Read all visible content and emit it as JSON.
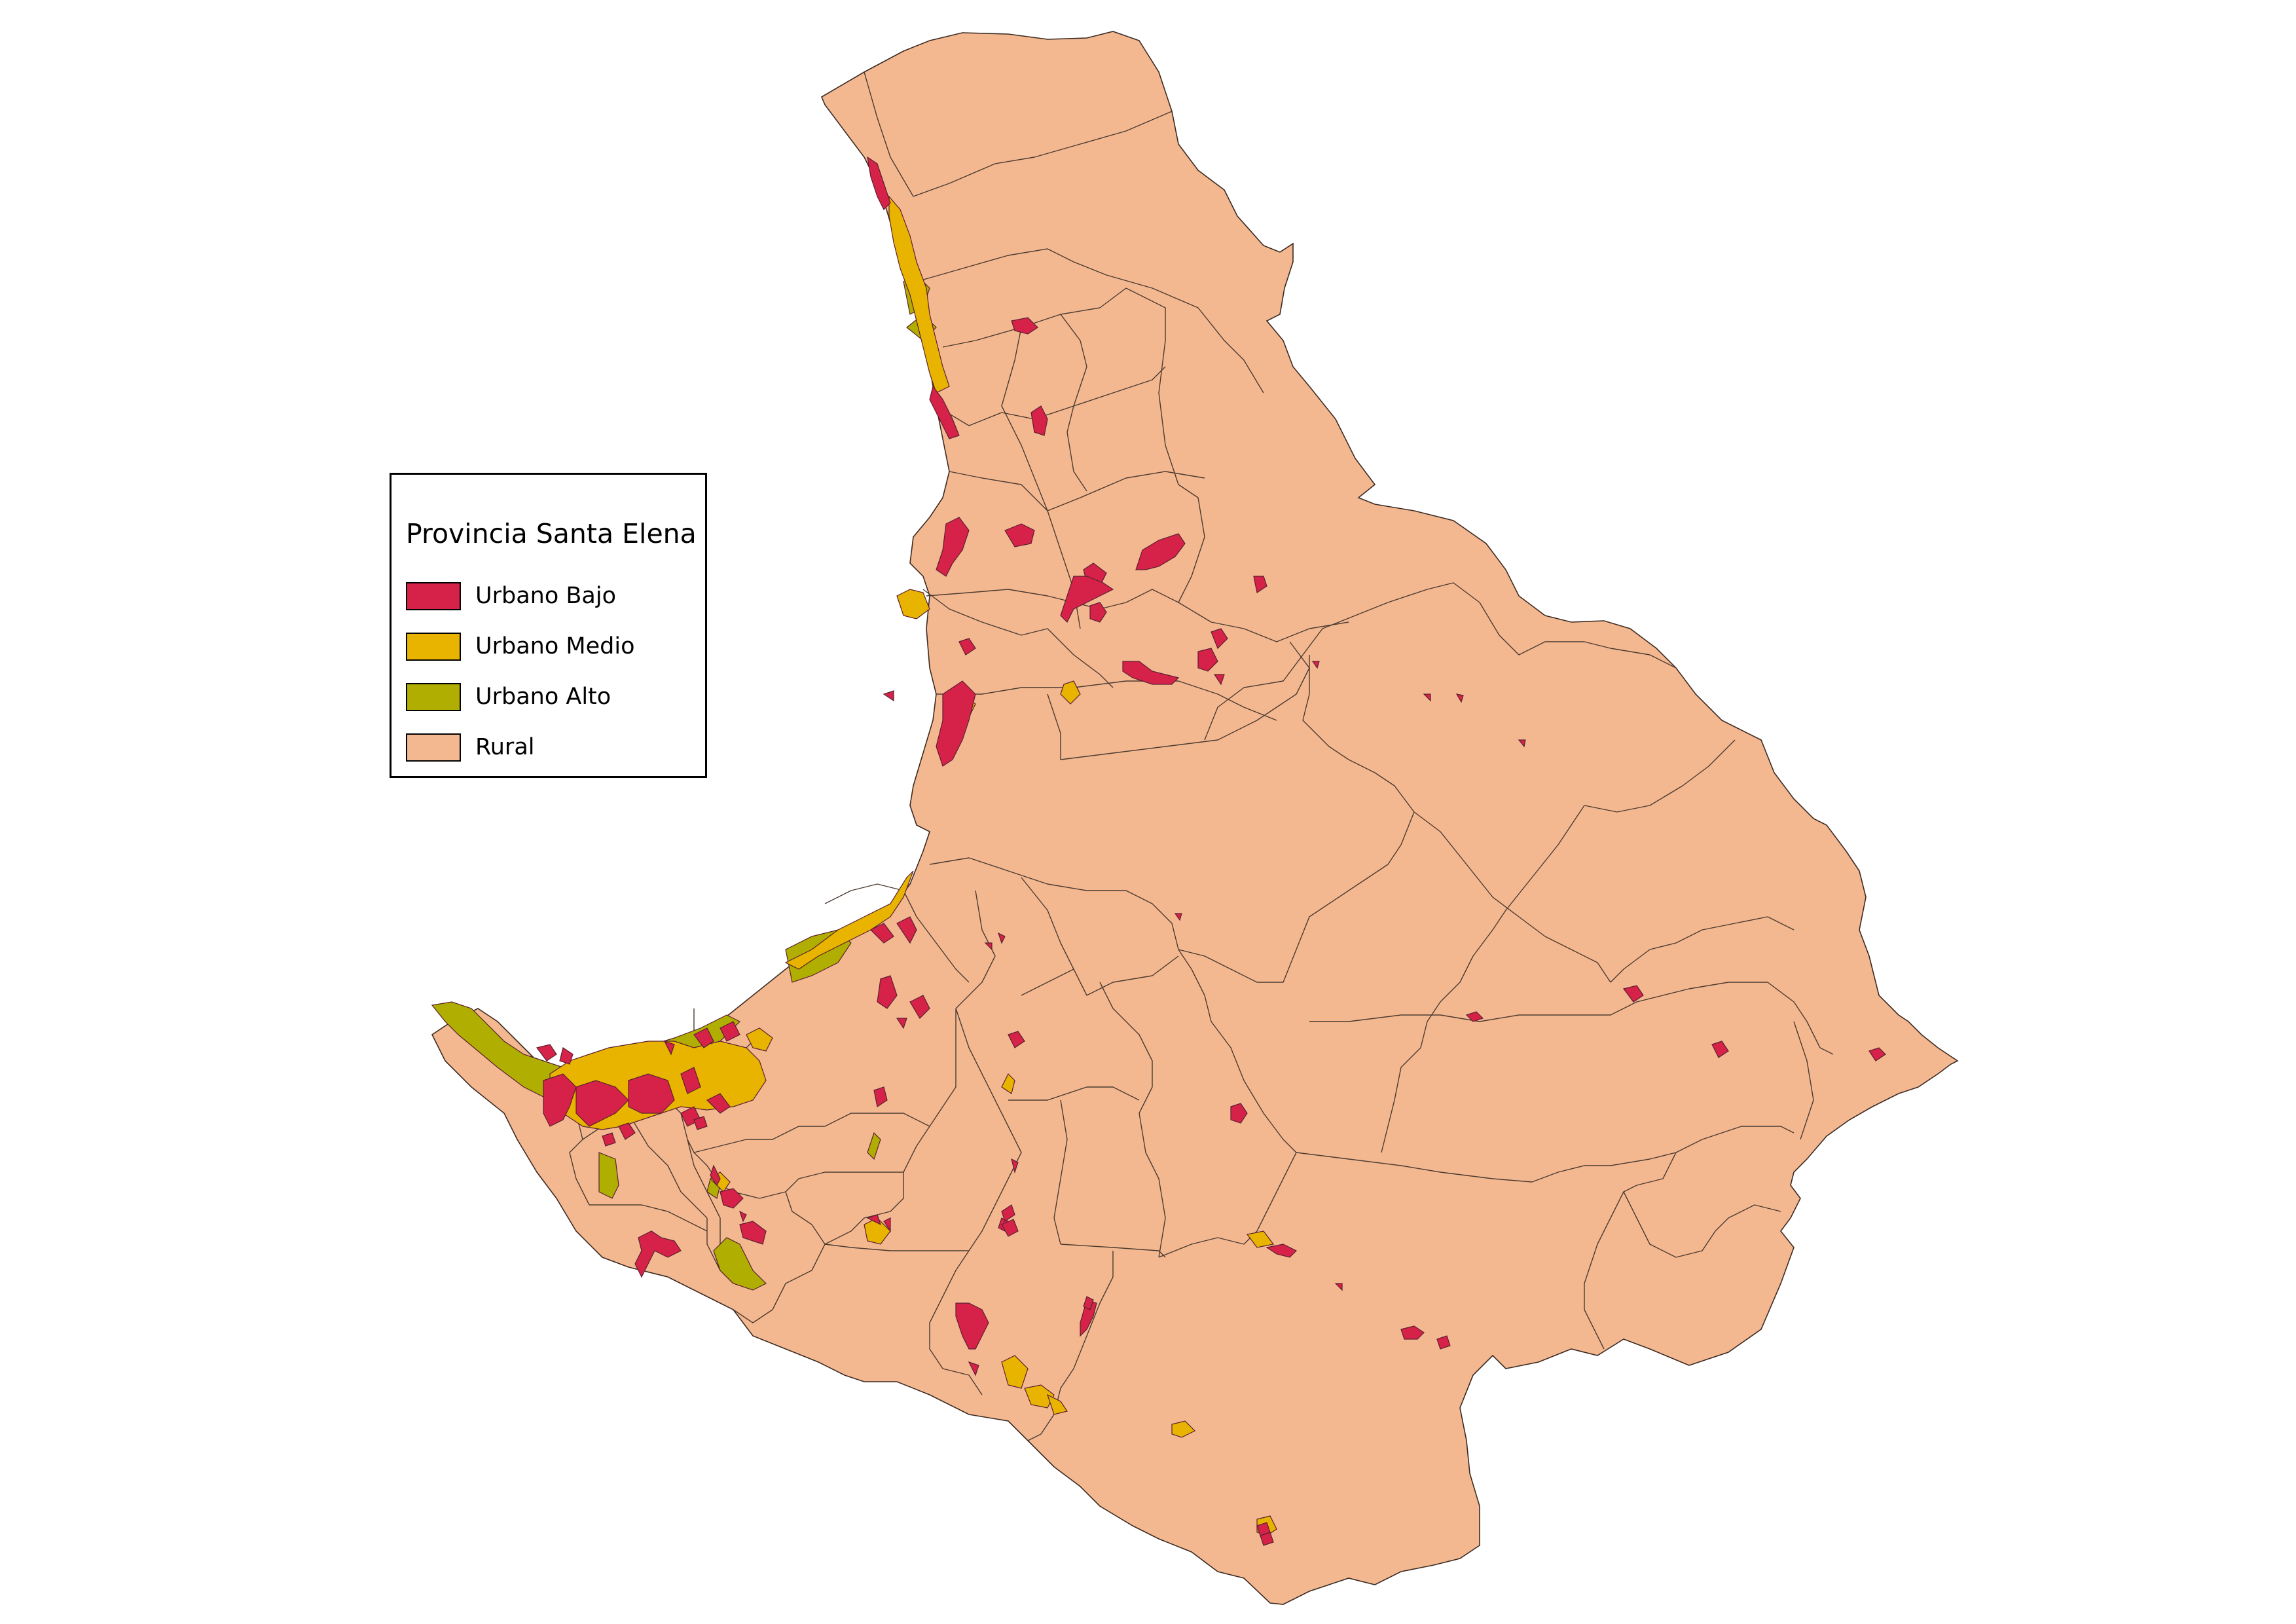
{
  "legend": {
    "title": "Provincia Santa Elena",
    "items": [
      {
        "label": "Urbano Bajo",
        "color": "#d62248"
      },
      {
        "label": "Urbano Medio",
        "color": "#e8b400"
      },
      {
        "label": "Urbano Alto",
        "color": "#b0ae00"
      },
      {
        "label": "Rural",
        "color": "#f4b891"
      }
    ]
  },
  "colors": {
    "urbano_bajo": "#d62248",
    "urbano_medio": "#e8b400",
    "urbano_alto": "#b0ae00",
    "rural": "#f4b891",
    "boundary": "#3a2a22"
  }
}
